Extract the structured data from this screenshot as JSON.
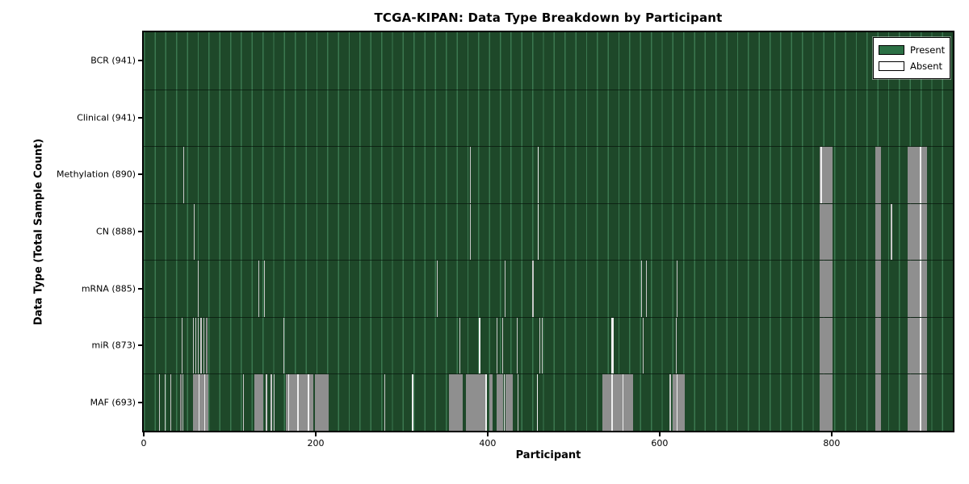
{
  "title": "TCGA-KIPAN: Data Type Breakdown by Participant",
  "xlabel": "Participant",
  "ylabel": "Data Type (Total Sample Count)",
  "legend": {
    "present_label": "Present",
    "absent_label": "Absent"
  },
  "colors": {
    "present_fill": "#2c7045",
    "plot_base": "#1e4829",
    "grid_moire_line": "#58a876",
    "absent_band": "#8f8f8f",
    "absent_line": "#c9c9c9",
    "absent_bright": "#efefef",
    "row_separator": "#0a140c",
    "axis": "#000000"
  },
  "chart_data": {
    "type": "heatmap",
    "title": "TCGA-KIPAN: Data Type Breakdown by Participant",
    "xlabel": "Participant",
    "ylabel": "Data Type (Total Sample Count)",
    "x_range": [
      0,
      941
    ],
    "x_ticks": [
      0,
      200,
      400,
      600,
      800
    ],
    "legend_entries": [
      "Present",
      "Absent"
    ],
    "legend_position": "upper right",
    "note": "Rows list absent-sample stripes as [startParticipant, endParticipant, shade] where shade b=wide gray band, l=thin light line, w=bright white stripe; all other cells are Present (green).",
    "rows": [
      {
        "label": "BCR (941)",
        "name": "BCR",
        "present_count": 941,
        "absent": []
      },
      {
        "label": "Clinical (941)",
        "name": "Clinical",
        "present_count": 941,
        "absent": []
      },
      {
        "label": "Methylation (890)",
        "name": "Methylation",
        "present_count": 890,
        "absent": [
          [
            46,
            47,
            "l"
          ],
          [
            379,
            380,
            "l"
          ],
          [
            458,
            459,
            "w"
          ],
          [
            786,
            801,
            "b"
          ],
          [
            787,
            789,
            "w"
          ],
          [
            851,
            857,
            "b"
          ],
          [
            888,
            911,
            "b"
          ],
          [
            902,
            904,
            "w"
          ]
        ]
      },
      {
        "label": "CN (888)",
        "name": "CN",
        "present_count": 888,
        "absent": [
          [
            58,
            59,
            "l"
          ],
          [
            379,
            380,
            "l"
          ],
          [
            458,
            459,
            "w"
          ],
          [
            869,
            870,
            "l"
          ],
          [
            786,
            801,
            "b"
          ],
          [
            851,
            857,
            "b"
          ],
          [
            888,
            911,
            "b"
          ],
          [
            902,
            904,
            "w"
          ]
        ]
      },
      {
        "label": "mRNA (885)",
        "name": "mRNA",
        "present_count": 885,
        "absent": [
          [
            63,
            64,
            "l"
          ],
          [
            133,
            134,
            "l"
          ],
          [
            140,
            141,
            "l"
          ],
          [
            341,
            342,
            "l"
          ],
          [
            420,
            421,
            "l"
          ],
          [
            452,
            453,
            "l"
          ],
          [
            578,
            579,
            "l"
          ],
          [
            584,
            585,
            "l"
          ],
          [
            620,
            621,
            "l"
          ],
          [
            786,
            801,
            "b"
          ],
          [
            851,
            857,
            "b"
          ],
          [
            888,
            911,
            "b"
          ],
          [
            902,
            904,
            "w"
          ]
        ]
      },
      {
        "label": "miR (873)",
        "name": "miR",
        "present_count": 873,
        "absent": [
          [
            44,
            45,
            "l"
          ],
          [
            57,
            58,
            "l"
          ],
          [
            60,
            61,
            "l"
          ],
          [
            63,
            64,
            "l"
          ],
          [
            66,
            67,
            "l"
          ],
          [
            69,
            70,
            "l"
          ],
          [
            72,
            74,
            "b"
          ],
          [
            162,
            163,
            "l"
          ],
          [
            367,
            368,
            "l"
          ],
          [
            390,
            391,
            "w"
          ],
          [
            410,
            411,
            "l"
          ],
          [
            417,
            418,
            "l"
          ],
          [
            434,
            435,
            "l"
          ],
          [
            460,
            461,
            "l"
          ],
          [
            463,
            464,
            "l"
          ],
          [
            544,
            547,
            "w"
          ],
          [
            580,
            581,
            "l"
          ],
          [
            619,
            620,
            "l"
          ],
          [
            786,
            801,
            "b"
          ],
          [
            851,
            857,
            "b"
          ],
          [
            888,
            911,
            "b"
          ],
          [
            902,
            904,
            "w"
          ]
        ]
      },
      {
        "label": "MAF (693)",
        "name": "MAF",
        "present_count": 693,
        "absent": [
          [
            18,
            19,
            "l"
          ],
          [
            24,
            25,
            "l"
          ],
          [
            31,
            32,
            "l"
          ],
          [
            42,
            44,
            "b"
          ],
          [
            45,
            46,
            "l"
          ],
          [
            57,
            75,
            "b"
          ],
          [
            64,
            65,
            "w"
          ],
          [
            70,
            71,
            "w"
          ],
          [
            115,
            116,
            "l"
          ],
          [
            129,
            139,
            "b"
          ],
          [
            142,
            144,
            "l"
          ],
          [
            147,
            149,
            "l"
          ],
          [
            151,
            152,
            "l"
          ],
          [
            165,
            197,
            "b"
          ],
          [
            168,
            169,
            "w"
          ],
          [
            178,
            180,
            "w"
          ],
          [
            191,
            192,
            "w"
          ],
          [
            199,
            215,
            "b"
          ],
          [
            280,
            281,
            "l"
          ],
          [
            312,
            314,
            "w"
          ],
          [
            355,
            371,
            "b"
          ],
          [
            375,
            397,
            "b"
          ],
          [
            397,
            399,
            "w"
          ],
          [
            402,
            406,
            "b"
          ],
          [
            410,
            418,
            "b"
          ],
          [
            419,
            420,
            "w"
          ],
          [
            421,
            429,
            "b"
          ],
          [
            435,
            436,
            "l"
          ],
          [
            457,
            458,
            "w"
          ],
          [
            533,
            569,
            "b"
          ],
          [
            544,
            545,
            "w"
          ],
          [
            557,
            558,
            "w"
          ],
          [
            611,
            613,
            "l"
          ],
          [
            615,
            629,
            "b"
          ],
          [
            620,
            621,
            "w"
          ],
          [
            786,
            801,
            "b"
          ],
          [
            851,
            857,
            "b"
          ],
          [
            888,
            911,
            "b"
          ],
          [
            902,
            904,
            "w"
          ]
        ]
      }
    ]
  }
}
